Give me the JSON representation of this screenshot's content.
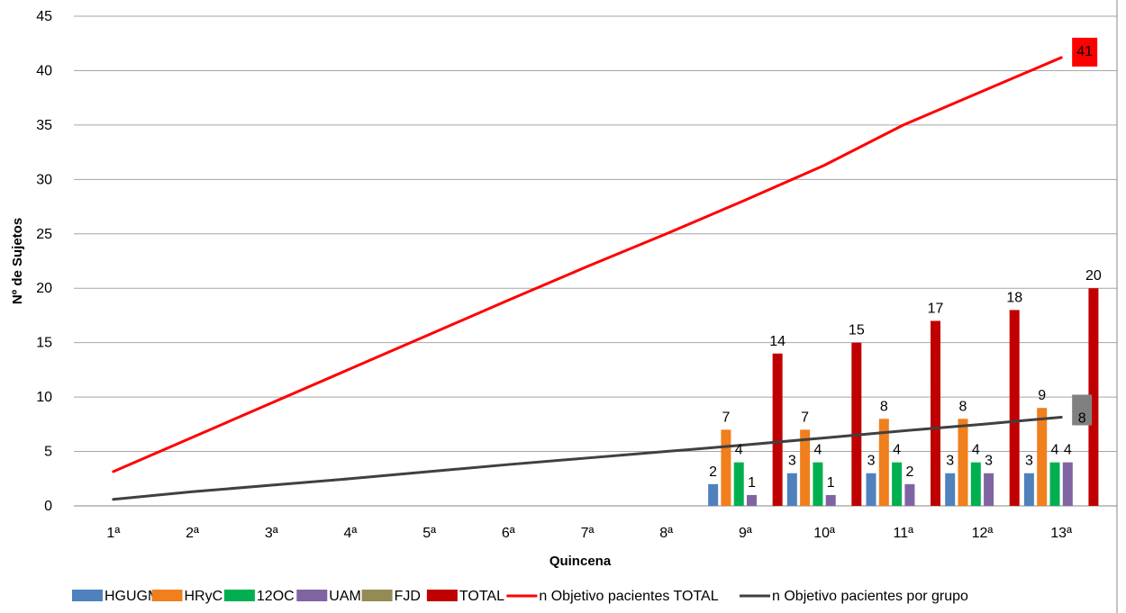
{
  "chart_data": {
    "type": "bar",
    "xlabel": "Quincena",
    "ylabel": "Nº de Sujetos",
    "ylim": [
      0,
      45
    ],
    "yticks": [
      0,
      5,
      10,
      15,
      20,
      25,
      30,
      35,
      40,
      45
    ],
    "grid": true,
    "legend_position": "bottom",
    "categories": [
      "1ª",
      "2ª",
      "3ª",
      "4ª",
      "5ª",
      "6ª",
      "7ª",
      "8ª",
      "9ª",
      "10ª",
      "11ª",
      "12ª",
      "13ª"
    ],
    "bar_series": [
      {
        "name": "HGUGM",
        "color": "#4f81bd",
        "values": [
          null,
          null,
          null,
          null,
          null,
          null,
          null,
          null,
          2,
          3,
          3,
          3,
          3
        ]
      },
      {
        "name": "HRyC",
        "color": "#f07f1e",
        "values": [
          null,
          null,
          null,
          null,
          null,
          null,
          null,
          null,
          7,
          7,
          8,
          8,
          9
        ]
      },
      {
        "name": "12OC",
        "color": "#00b050",
        "values": [
          null,
          null,
          null,
          null,
          null,
          null,
          null,
          null,
          4,
          4,
          4,
          4,
          4
        ]
      },
      {
        "name": "UAM",
        "color": "#8064a2",
        "values": [
          null,
          null,
          null,
          null,
          null,
          null,
          null,
          null,
          1,
          1,
          2,
          3,
          4
        ]
      },
      {
        "name": "FJD",
        "color": "#948a54",
        "values": [
          null,
          null,
          null,
          null,
          null,
          null,
          null,
          null,
          null,
          null,
          null,
          null,
          null
        ]
      },
      {
        "name": "TOTAL",
        "color": "#c00000",
        "values": [
          null,
          null,
          null,
          null,
          null,
          null,
          null,
          null,
          14,
          15,
          17,
          18,
          20
        ]
      }
    ],
    "line_series": [
      {
        "name": "n Objetivo pacientes TOTAL",
        "color": "#ff0000",
        "values": [
          3.15,
          6.3,
          9.45,
          12.6,
          15.75,
          18.9,
          22.0,
          25.0,
          28.1,
          31.3,
          35.0,
          38.1,
          41.2
        ],
        "end_label": "41",
        "end_label_bg": "#ff0000"
      },
      {
        "name": "n Objetivo pacientes por grupo",
        "color": "#404040",
        "values": [
          0.6,
          1.3,
          1.9,
          2.5,
          3.15,
          3.8,
          4.4,
          5.0,
          5.6,
          6.25,
          6.9,
          7.5,
          8.15
        ],
        "end_label": "8",
        "end_label_bg": "#808080"
      }
    ]
  }
}
